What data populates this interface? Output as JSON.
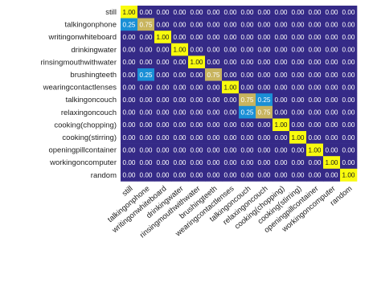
{
  "chart_data": {
    "type": "heatmap",
    "title": "",
    "xlabel": "",
    "ylabel": "",
    "labels": [
      "still",
      "talkingonphone",
      "writingonwhiteboard",
      "drinkingwater",
      "rinsingmouthwithwater",
      "brushingteeth",
      "wearingcontactlenses",
      "talkingoncouch",
      "relaxingoncouch",
      "cooking(chopping)",
      "cooking(stirring)",
      "openingpillcontainer",
      "workingoncomputer",
      "random"
    ],
    "matrix": [
      [
        1.0,
        0.0,
        0.0,
        0.0,
        0.0,
        0.0,
        0.0,
        0.0,
        0.0,
        0.0,
        0.0,
        0.0,
        0.0,
        0.0
      ],
      [
        0.25,
        0.75,
        0.0,
        0.0,
        0.0,
        0.0,
        0.0,
        0.0,
        0.0,
        0.0,
        0.0,
        0.0,
        0.0,
        0.0
      ],
      [
        0.0,
        0.0,
        1.0,
        0.0,
        0.0,
        0.0,
        0.0,
        0.0,
        0.0,
        0.0,
        0.0,
        0.0,
        0.0,
        0.0
      ],
      [
        0.0,
        0.0,
        0.0,
        1.0,
        0.0,
        0.0,
        0.0,
        0.0,
        0.0,
        0.0,
        0.0,
        0.0,
        0.0,
        0.0
      ],
      [
        0.0,
        0.0,
        0.0,
        0.0,
        1.0,
        0.0,
        0.0,
        0.0,
        0.0,
        0.0,
        0.0,
        0.0,
        0.0,
        0.0
      ],
      [
        0.0,
        0.25,
        0.0,
        0.0,
        0.0,
        0.75,
        0.0,
        0.0,
        0.0,
        0.0,
        0.0,
        0.0,
        0.0,
        0.0
      ],
      [
        0.0,
        0.0,
        0.0,
        0.0,
        0.0,
        0.0,
        1.0,
        0.0,
        0.0,
        0.0,
        0.0,
        0.0,
        0.0,
        0.0
      ],
      [
        0.0,
        0.0,
        0.0,
        0.0,
        0.0,
        0.0,
        0.0,
        0.75,
        0.25,
        0.0,
        0.0,
        0.0,
        0.0,
        0.0
      ],
      [
        0.0,
        0.0,
        0.0,
        0.0,
        0.0,
        0.0,
        0.0,
        0.25,
        0.75,
        0.0,
        0.0,
        0.0,
        0.0,
        0.0
      ],
      [
        0.0,
        0.0,
        0.0,
        0.0,
        0.0,
        0.0,
        0.0,
        0.0,
        0.0,
        1.0,
        0.0,
        0.0,
        0.0,
        0.0
      ],
      [
        0.0,
        0.0,
        0.0,
        0.0,
        0.0,
        0.0,
        0.0,
        0.0,
        0.0,
        0.0,
        1.0,
        0.0,
        0.0,
        0.0
      ],
      [
        0.0,
        0.0,
        0.0,
        0.0,
        0.0,
        0.0,
        0.0,
        0.0,
        0.0,
        0.0,
        0.0,
        1.0,
        0.0,
        0.0
      ],
      [
        0.0,
        0.0,
        0.0,
        0.0,
        0.0,
        0.0,
        0.0,
        0.0,
        0.0,
        0.0,
        0.0,
        0.0,
        1.0,
        0.0
      ],
      [
        0.0,
        0.0,
        0.0,
        0.0,
        0.0,
        0.0,
        0.0,
        0.0,
        0.0,
        0.0,
        0.0,
        0.0,
        0.0,
        1.0
      ]
    ],
    "value_range": [
      0,
      1
    ],
    "colors": {
      "v000": "#352a87",
      "v025": "#1a8fd6",
      "v075": "#c8b45e",
      "v100": "#f9fb0e"
    },
    "grid": false,
    "legend": "none"
  }
}
